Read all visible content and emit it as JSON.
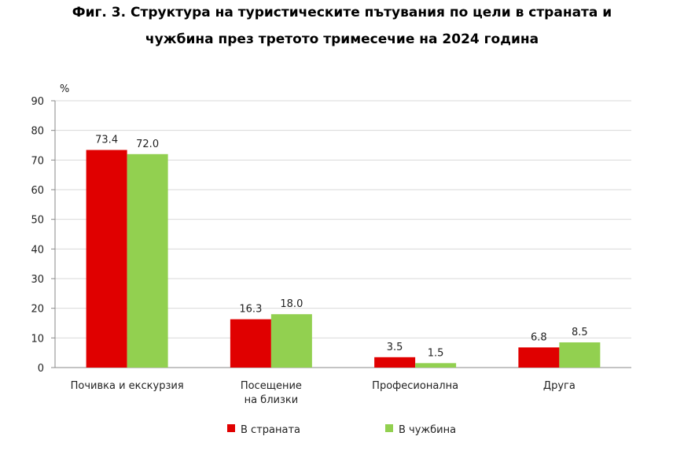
{
  "chart_data": {
    "type": "bar",
    "title_line1": "Фиг. 3. Структура на туристическите пътувания по цели в страната и",
    "title_line2": "чужбина през третото тримесечие на 2024 година",
    "ylabel": "%",
    "ylim": [
      0,
      90
    ],
    "yticks": [
      0,
      10,
      20,
      30,
      40,
      50,
      60,
      70,
      80,
      90
    ],
    "grid": true,
    "categories": [
      [
        "Почивка и екскурзия"
      ],
      [
        "Посещение",
        "на близки"
      ],
      [
        "Професионална"
      ],
      [
        "Друга"
      ]
    ],
    "series": [
      {
        "name": "В страната",
        "color": "#e00000",
        "values": [
          73.4,
          16.3,
          3.5,
          6.8
        ]
      },
      {
        "name": "В чужбина",
        "color": "#92d050",
        "values": [
          72.0,
          18.0,
          1.5,
          8.5
        ]
      }
    ],
    "legend_position": "bottom"
  }
}
